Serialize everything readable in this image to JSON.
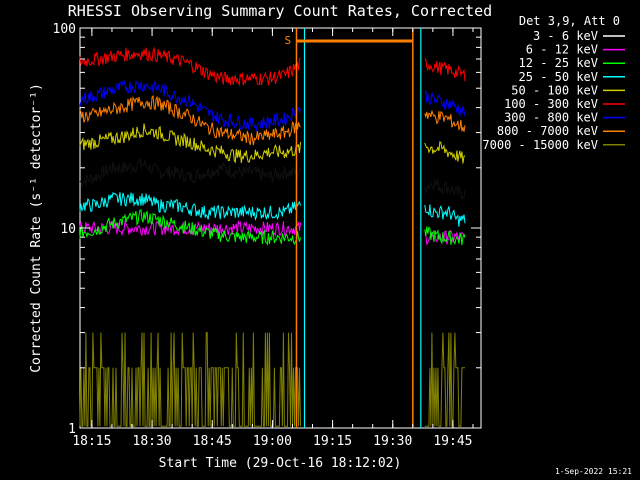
{
  "chart_data": {
    "type": "line",
    "title": "RHESSI Observing Summary Count Rates, Corrected",
    "xlabel": "Start Time (29-Oct-16 18:12:02)",
    "ylabel": "Corrected Count Rate (s⁻¹ detector⁻¹)",
    "yscale": "log",
    "ylim": [
      1,
      100
    ],
    "xlim": [
      "18:12:02",
      "19:52:00"
    ],
    "x_ticks": [
      "18:15",
      "18:30",
      "18:45",
      "19:00",
      "19:15",
      "19:30",
      "19:45"
    ],
    "y_ticks": [
      "1",
      "10",
      "100"
    ],
    "legend_title": "Det 3,9, Att 0",
    "legend_position": "right",
    "footer": "1-Sep-2022 15:21",
    "gaps": [
      [
        "19:08",
        "19:37"
      ]
    ],
    "markers": [
      {
        "label": "S",
        "time": "19:06",
        "color": "#ff7f00"
      },
      {
        "label": "",
        "time": "19:35",
        "color": "#ff7f00"
      }
    ],
    "series": [
      {
        "name": "3 - 6 keV",
        "color": "#000000",
        "segments": [
          {
            "t0": "18:12",
            "t1": "19:07",
            "v": [
              17,
              18,
              20,
              20,
              21,
              19,
              19,
              18,
              19,
              20,
              19,
              19,
              18,
              19,
              19
            ]
          },
          {
            "t0": "19:38",
            "t1": "19:48",
            "v": [
              16,
              17,
              16,
              16,
              15,
              15
            ]
          }
        ]
      },
      {
        "name": "6 - 12 keV",
        "color": "#ff00ff",
        "segments": [
          {
            "t0": "18:12",
            "t1": "19:07",
            "v": [
              10,
              10,
              10,
              10,
              10,
              10,
              10,
              10,
              10,
              10,
              10,
              10,
              10,
              10,
              10
            ]
          },
          {
            "t0": "19:38",
            "t1": "19:48",
            "v": [
              9,
              9,
              9,
              9,
              9,
              9
            ]
          }
        ]
      },
      {
        "name": "12 - 25 keV",
        "color": "#00ff00",
        "segments": [
          {
            "t0": "18:12",
            "t1": "19:07",
            "v": [
              9.5,
              9.8,
              10.5,
              11,
              11.5,
              11,
              10.5,
              10,
              9.5,
              9.2,
              9,
              9,
              9,
              9,
              9
            ]
          },
          {
            "t0": "19:38",
            "t1": "19:48",
            "v": [
              9.5,
              9.2,
              9,
              9,
              8.8,
              8.8
            ]
          }
        ]
      },
      {
        "name": "25 - 50 keV",
        "color": "#00ffff",
        "segments": [
          {
            "t0": "18:12",
            "t1": "19:07",
            "v": [
              13,
              13,
              14,
              14,
              14,
              13,
              13,
              12.5,
              12,
              12,
              12,
              12,
              12,
              12,
              13
            ]
          },
          {
            "t0": "19:38",
            "t1": "19:48",
            "v": [
              13,
              12,
              12,
              12,
              11,
              11
            ]
          }
        ]
      },
      {
        "name": "50 - 100 keV",
        "color": "#d0d000",
        "segments": [
          {
            "t0": "18:12",
            "t1": "19:07",
            "v": [
              26,
              27,
              28,
              29,
              31,
              30,
              28,
              27,
              25,
              24,
              23,
              23,
              24,
              24,
              25
            ]
          },
          {
            "t0": "19:38",
            "t1": "19:48",
            "v": [
              26,
              25,
              25,
              24,
              23,
              22
            ]
          }
        ]
      },
      {
        "name": "100 - 300 keV",
        "color": "#ff0000",
        "segments": [
          {
            "t0": "18:12",
            "t1": "19:07",
            "v": [
              68,
              70,
              72,
              74,
              75,
              73,
              70,
              66,
              60,
              56,
              56,
              56,
              56,
              58,
              66
            ]
          },
          {
            "t0": "19:38",
            "t1": "19:48",
            "v": [
              67,
              65,
              63,
              62,
              60,
              58
            ]
          }
        ]
      },
      {
        "name": "300 - 800 keV",
        "color": "#0000ff",
        "segments": [
          {
            "t0": "18:12",
            "t1": "19:07",
            "v": [
              44,
              46,
              49,
              51,
              52,
              50,
              46,
              43,
              38,
              35,
              34,
              33,
              34,
              35,
              40
            ]
          },
          {
            "t0": "19:38",
            "t1": "19:48",
            "v": [
              46,
              44,
              43,
              42,
              40,
              38
            ]
          }
        ]
      },
      {
        "name": "800 - 7000 keV",
        "color": "#ff7f00",
        "segments": [
          {
            "t0": "18:12",
            "t1": "19:07",
            "v": [
              36,
              37,
              39,
              41,
              43,
              42,
              39,
              36,
              32,
              30,
              29,
              28,
              29,
              30,
              33
            ]
          },
          {
            "t0": "19:38",
            "t1": "19:48",
            "v": [
              38,
              36,
              36,
              35,
              33,
              32
            ]
          }
        ]
      },
      {
        "name": "7000 - 15000 keV",
        "color": "#808000",
        "segments": [
          {
            "t0": "18:12",
            "t1": "19:07",
            "v": [
              1.5,
              1.6,
              1.5,
              1.7,
              1.8,
              1.6,
              1.5,
              1.5,
              1.5,
              1.5,
              1.5,
              1.5,
              1.5,
              1.5,
              1.5
            ]
          },
          {
            "t0": "19:38",
            "t1": "19:48",
            "v": [
              1.5,
              1.5,
              1.6,
              1.5,
              1.5,
              1.5
            ]
          }
        ]
      }
    ]
  }
}
